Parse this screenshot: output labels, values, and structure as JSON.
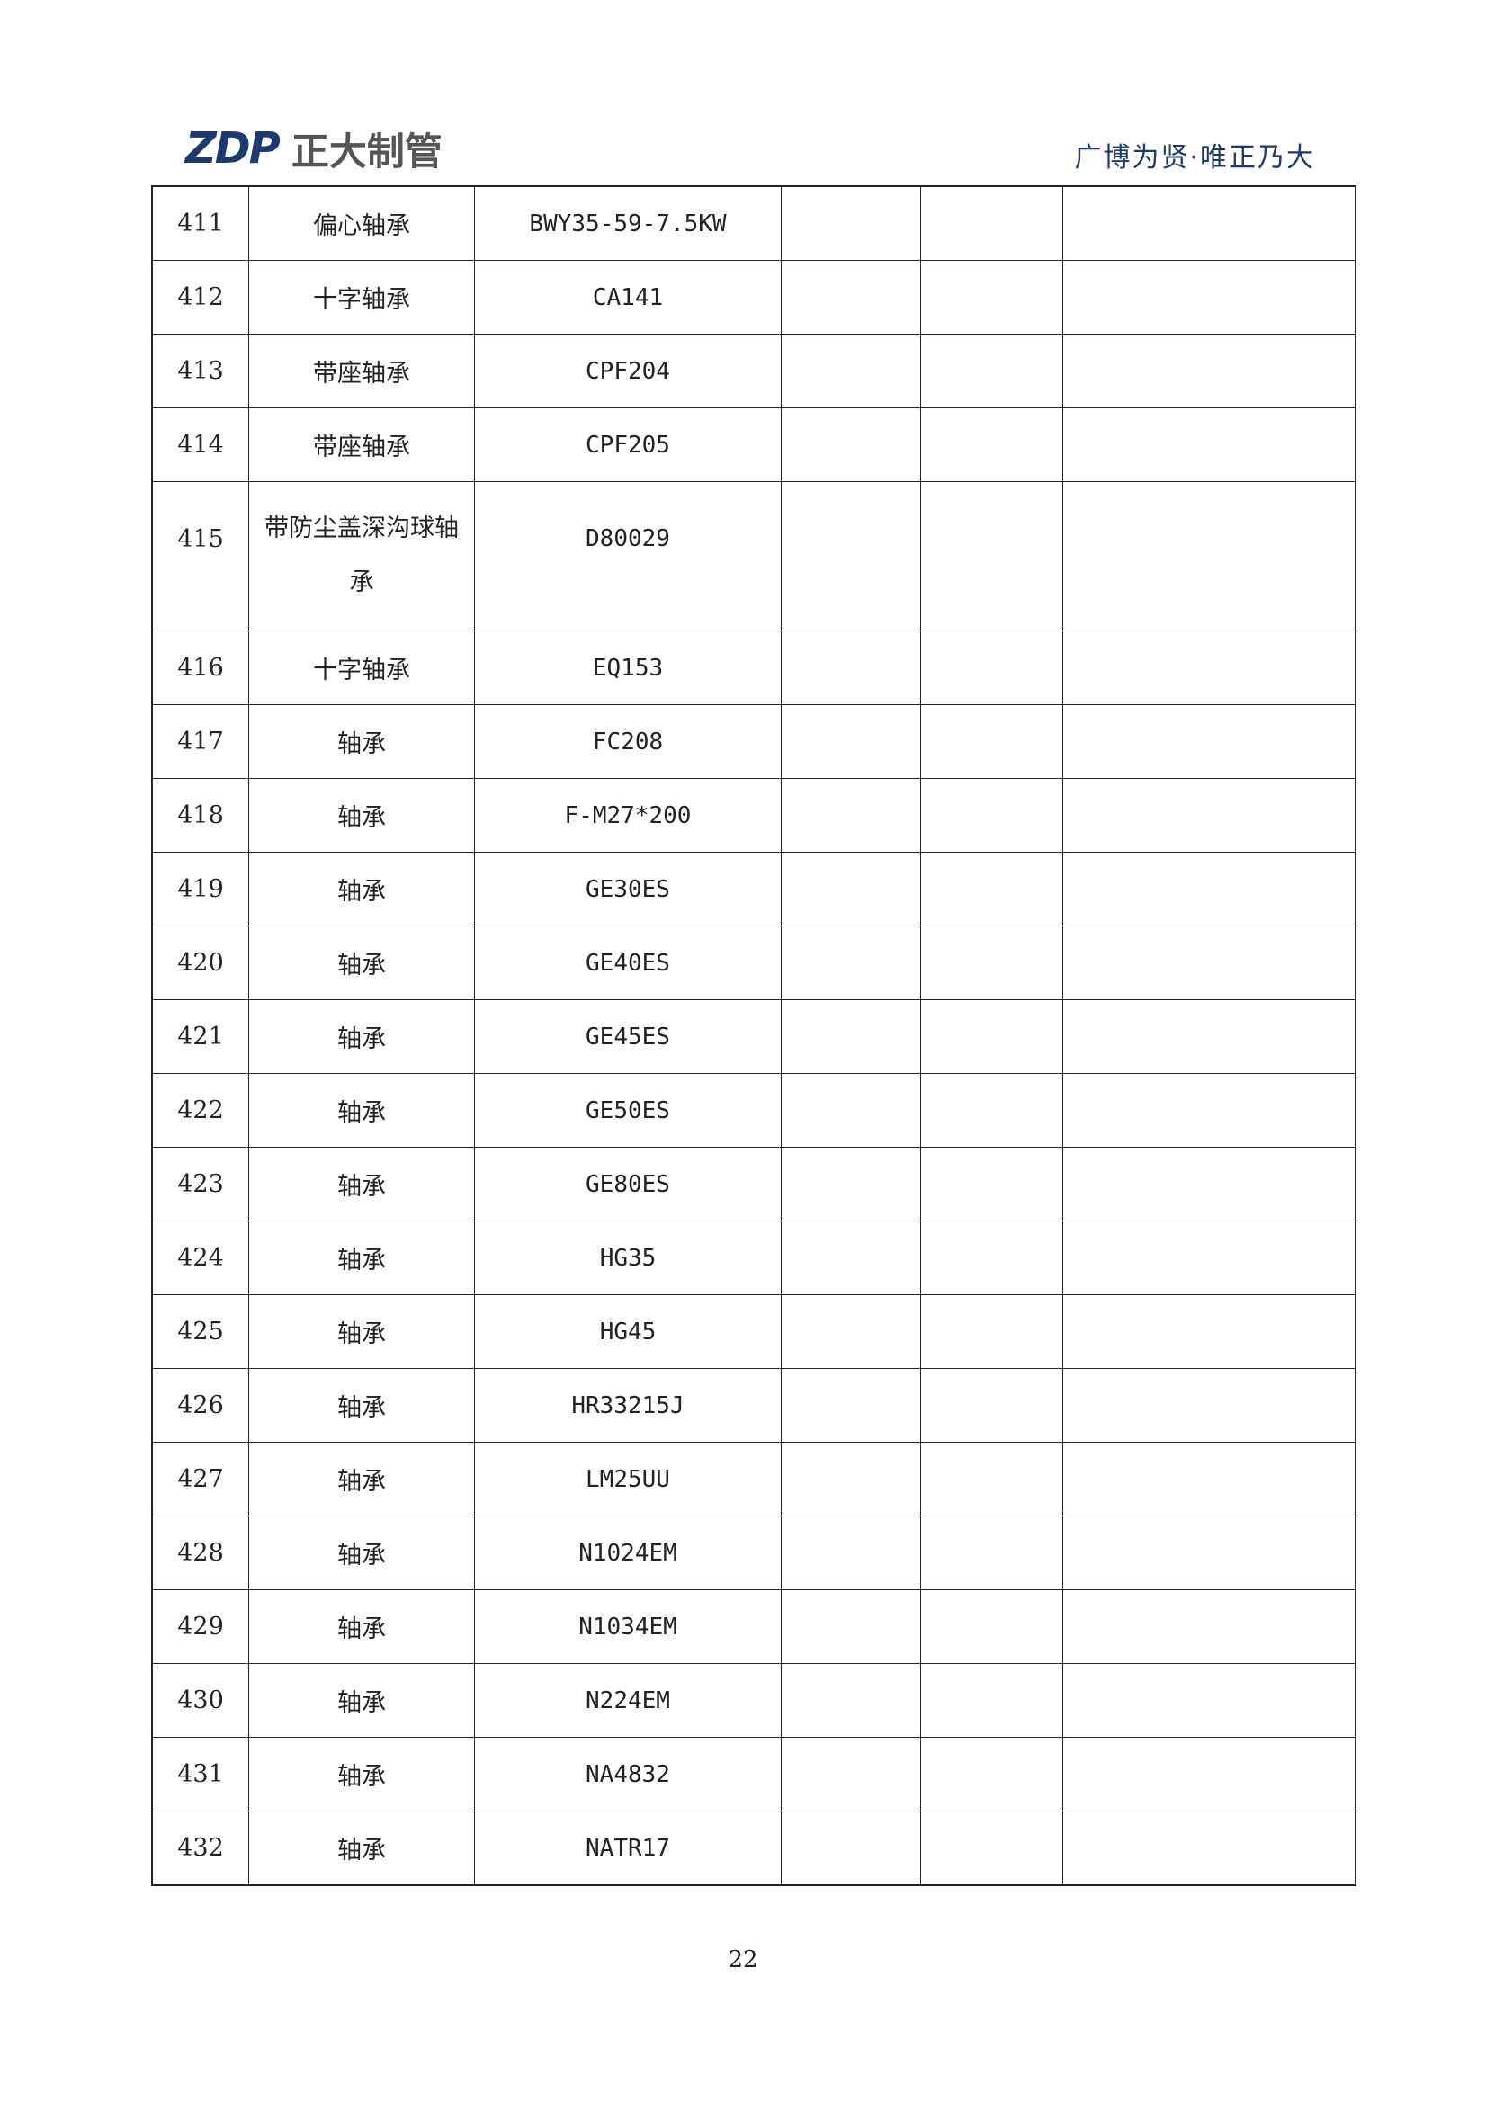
{
  "header": {
    "logo_mark": "ZDP",
    "logo_name": "正大制管",
    "slogan": "广博为贤·唯正乃大"
  },
  "rows": [
    {
      "no": "411",
      "name": "偏心轴承",
      "model": "BWY35-59-7.5KW"
    },
    {
      "no": "412",
      "name": "十字轴承",
      "model": "CA141"
    },
    {
      "no": "413",
      "name": "带座轴承",
      "model": "CPF204"
    },
    {
      "no": "414",
      "name": "带座轴承",
      "model": "CPF205"
    },
    {
      "no": "415",
      "name": "带防尘盖深沟球轴承",
      "model": "D80029"
    },
    {
      "no": "416",
      "name": "十字轴承",
      "model": "EQ153"
    },
    {
      "no": "417",
      "name": "轴承",
      "model": "FC208"
    },
    {
      "no": "418",
      "name": "轴承",
      "model": "F-M27*200"
    },
    {
      "no": "419",
      "name": "轴承",
      "model": "GE30ES"
    },
    {
      "no": "420",
      "name": "轴承",
      "model": "GE40ES"
    },
    {
      "no": "421",
      "name": "轴承",
      "model": "GE45ES"
    },
    {
      "no": "422",
      "name": "轴承",
      "model": "GE50ES"
    },
    {
      "no": "423",
      "name": "轴承",
      "model": "GE80ES"
    },
    {
      "no": "424",
      "name": "轴承",
      "model": "HG35"
    },
    {
      "no": "425",
      "name": "轴承",
      "model": "HG45"
    },
    {
      "no": "426",
      "name": "轴承",
      "model": "HR33215J"
    },
    {
      "no": "427",
      "name": "轴承",
      "model": "LM25UU"
    },
    {
      "no": "428",
      "name": "轴承",
      "model": "N1024EM"
    },
    {
      "no": "429",
      "name": "轴承",
      "model": "N1034EM"
    },
    {
      "no": "430",
      "name": "轴承",
      "model": "N224EM"
    },
    {
      "no": "431",
      "name": "轴承",
      "model": "NA4832"
    },
    {
      "no": "432",
      "name": "轴承",
      "model": "NATR17"
    }
  ],
  "footer": {
    "page_number": "22"
  }
}
